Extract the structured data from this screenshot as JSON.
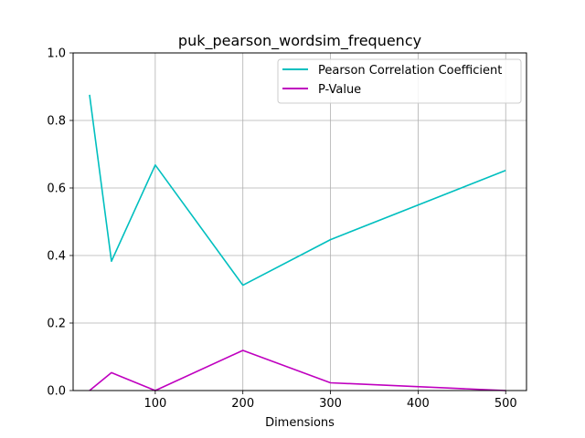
{
  "chart_data": {
    "type": "line",
    "title": "puk_pearson_wordsim_frequency",
    "xlabel": "Dimensions",
    "ylabel": "",
    "xlim": [
      6.25,
      523.75
    ],
    "ylim": [
      0,
      1.0
    ],
    "xticks": [
      100,
      200,
      300,
      400,
      500
    ],
    "yticks": [
      0.0,
      0.2,
      0.4,
      0.6,
      0.8,
      1.0
    ],
    "xtick_labels": [
      "100",
      "200",
      "300",
      "400",
      "500"
    ],
    "ytick_labels": [
      "0.0",
      "0.2",
      "0.4",
      "0.6",
      "0.8",
      "1.0"
    ],
    "grid": true,
    "legend_position": "top-right",
    "x": [
      25,
      50,
      100,
      200,
      300,
      500
    ],
    "series": [
      {
        "name": "Pearson Correlation Coefficient",
        "color": "#00bfbf",
        "values": [
          0.876,
          0.383,
          0.668,
          0.312,
          0.447,
          0.652
        ]
      },
      {
        "name": "P-Value",
        "color": "#bf00bf",
        "values": [
          0.0,
          0.053,
          0.0,
          0.119,
          0.023,
          0.0
        ]
      }
    ]
  }
}
